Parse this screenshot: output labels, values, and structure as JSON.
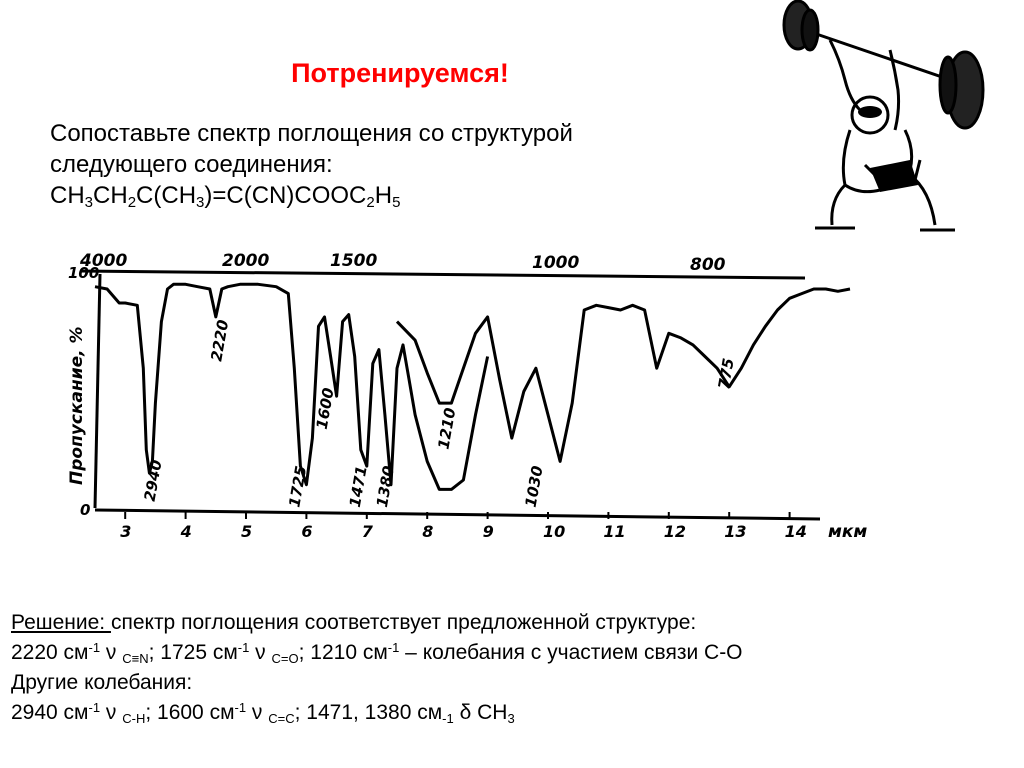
{
  "heading": "Потренируемся!",
  "task": {
    "line1": "Сопоставьте спектр поглощения со структурой",
    "line2": "следующего соединения:",
    "formula": {
      "p1": "CH",
      "s1": "3",
      "p2": "CH",
      "s2": "2",
      "p3": "C(CH",
      "s3": "3",
      "p4": ")=C(CN)COOC",
      "s4": "2",
      "p5": "H",
      "s5": "5"
    }
  },
  "solution": {
    "label": "Решение: ",
    "l1_text": "спектр поглощения соответствует предложенной структуре:",
    "l2": {
      "a": "2220 см",
      "a_sup": "-1",
      "a2": " ν ",
      "a_sub": "C≡N",
      "b": "; 1725 см",
      "b_sup": "-1",
      "b2": " ν ",
      "b_sub": "C=O",
      "c": "; 1210 см",
      "c_sup": "-1",
      "c2": " – колебания с участием связи C-O"
    },
    "l3": "Другие колебания:",
    "l4": {
      "a": "2940 см",
      "a_sup": "-1",
      "a2": " ν ",
      "a_sub": "C-H",
      "b": ";  1600 см",
      "b_sup": "-1",
      "b2": " ν ",
      "b_sub": "C=C",
      "c": ";    1471, 1380 см",
      "c_sub": "-1",
      "c2": " δ CH",
      "c_sub2": "3"
    }
  },
  "chart_data": {
    "type": "line",
    "ylabel": "Пропускание, %",
    "xlabel_unit": "мкм",
    "ylim": [
      0,
      100
    ],
    "xlim_um": [
      2.5,
      15.0
    ],
    "y_ticks": [
      "100",
      "0"
    ],
    "x_ticks_um": [
      "3",
      "4",
      "5",
      "6",
      "7",
      "8",
      "9",
      "10",
      "11",
      "12",
      "13",
      "14"
    ],
    "top_ticks_cm": [
      "4000",
      "2000",
      "1500",
      "1000",
      "800"
    ],
    "peak_labels": [
      "2940",
      "2220",
      "1725",
      "1600",
      "1471",
      "1380",
      "1210",
      "1030",
      "775"
    ],
    "series": [
      {
        "x_um": [
          2.5,
          2.7,
          2.9,
          3.0,
          3.2,
          3.3,
          3.35,
          3.4,
          3.45,
          3.5,
          3.6,
          3.7,
          3.8,
          4.0,
          4.2,
          4.4,
          4.5,
          4.6,
          4.7,
          4.9,
          5.2,
          5.5,
          5.7,
          5.8,
          5.9,
          6.0,
          6.1,
          6.2,
          6.3,
          6.4,
          6.5,
          6.6,
          6.7,
          6.8,
          6.9,
          7.0,
          7.1,
          7.2,
          7.3,
          7.4,
          7.5,
          7.6,
          7.7,
          7.8,
          8.0,
          8.2,
          8.4,
          8.6,
          8.8,
          9.0
        ],
        "y": [
          95,
          94,
          88,
          88,
          87,
          60,
          25,
          15,
          20,
          45,
          80,
          94,
          96,
          96,
          95,
          94,
          82,
          94,
          95,
          96,
          96,
          95,
          92,
          60,
          18,
          10,
          30,
          78,
          82,
          65,
          48,
          80,
          83,
          65,
          25,
          18,
          62,
          68,
          40,
          10,
          60,
          70,
          55,
          40,
          20,
          8,
          8,
          12,
          40,
          65
        ]
      },
      {
        "x_um": [
          7.5,
          7.8,
          8.0,
          8.2,
          8.4,
          8.6,
          8.8,
          9.0,
          9.2,
          9.4,
          9.6,
          9.8,
          10.0,
          10.2,
          10.4,
          10.6,
          10.8,
          11.0,
          11.2,
          11.4,
          11.6,
          11.8,
          12.0,
          12.2,
          12.4,
          12.6,
          12.8,
          13.0,
          13.2,
          13.4,
          13.6,
          13.8,
          14.0,
          14.2,
          14.4,
          14.6,
          14.8,
          15.0
        ],
        "y": [
          80,
          72,
          58,
          45,
          45,
          60,
          75,
          82,
          55,
          30,
          50,
          60,
          40,
          20,
          45,
          85,
          87,
          86,
          85,
          87,
          85,
          60,
          75,
          73,
          70,
          65,
          60,
          52,
          60,
          70,
          78,
          85,
          90,
          92,
          94,
          94,
          93,
          94
        ]
      }
    ]
  }
}
